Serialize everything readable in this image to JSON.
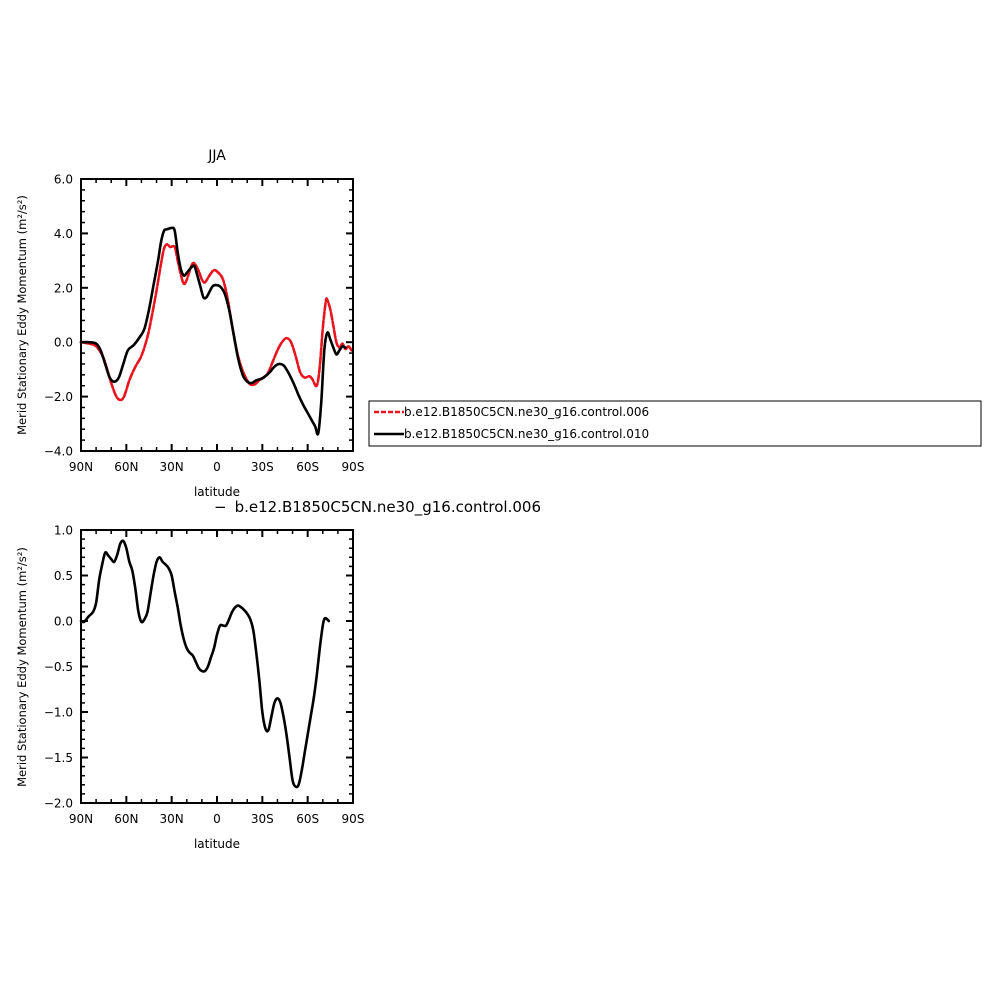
{
  "chart_data": [
    {
      "type": "line",
      "title": "JJA",
      "xlabel": "latitude",
      "ylabel": "Merid Stationary Eddy Momentum (m²/s²)",
      "xlim": [
        90,
        -90
      ],
      "ylim": [
        -4.0,
        6.0
      ],
      "xticks": [
        {
          "value": 90,
          "label": "90N"
        },
        {
          "value": 60,
          "label": "60N"
        },
        {
          "value": 30,
          "label": "30N"
        },
        {
          "value": 0,
          "label": "0"
        },
        {
          "value": -30,
          "label": "30S"
        },
        {
          "value": -60,
          "label": "60S"
        },
        {
          "value": -90,
          "label": "90S"
        }
      ],
      "yticks": [
        {
          "value": 6,
          "label": "6.0"
        },
        {
          "value": 4,
          "label": "4.0"
        },
        {
          "value": 2,
          "label": "2.0"
        },
        {
          "value": 0,
          "label": "0.0"
        },
        {
          "value": -2,
          "label": "−2.0"
        },
        {
          "value": -4,
          "label": "−4.0"
        }
      ],
      "series": [
        {
          "name": "b.e12.B1850C5CN.ne30_g16.control.006",
          "color": "#e8141e",
          "dash": true,
          "points": [
            [
              90,
              0.0
            ],
            [
              85,
              -0.05
            ],
            [
              80,
              -0.15
            ],
            [
              75,
              -0.6
            ],
            [
              70,
              -1.5
            ],
            [
              66,
              -2.05
            ],
            [
              62,
              -2.05
            ],
            [
              58,
              -1.4
            ],
            [
              54,
              -0.9
            ],
            [
              50,
              -0.5
            ],
            [
              46,
              0.2
            ],
            [
              43,
              1.0
            ],
            [
              40,
              1.9
            ],
            [
              37,
              2.9
            ],
            [
              35,
              3.45
            ],
            [
              33,
              3.6
            ],
            [
              31,
              3.5
            ],
            [
              28,
              3.5
            ],
            [
              26,
              3.0
            ],
            [
              24,
              2.5
            ],
            [
              22,
              2.15
            ],
            [
              20,
              2.3
            ],
            [
              17,
              2.8
            ],
            [
              15,
              2.9
            ],
            [
              12,
              2.6
            ],
            [
              10,
              2.3
            ],
            [
              8,
              2.2
            ],
            [
              5,
              2.45
            ],
            [
              2,
              2.65
            ],
            [
              -1,
              2.55
            ],
            [
              -4,
              2.3
            ],
            [
              -7,
              1.6
            ],
            [
              -10,
              0.6
            ],
            [
              -13,
              -0.3
            ],
            [
              -16,
              -0.9
            ],
            [
              -19,
              -1.3
            ],
            [
              -22,
              -1.55
            ],
            [
              -25,
              -1.55
            ],
            [
              -28,
              -1.4
            ],
            [
              -31,
              -1.3
            ],
            [
              -34,
              -1.1
            ],
            [
              -37,
              -0.7
            ],
            [
              -40,
              -0.3
            ],
            [
              -43,
              0.0
            ],
            [
              -46,
              0.15
            ],
            [
              -49,
              0.0
            ],
            [
              -52,
              -0.5
            ],
            [
              -55,
              -1.1
            ],
            [
              -58,
              -1.3
            ],
            [
              -61,
              -1.25
            ],
            [
              -63,
              -1.35
            ],
            [
              -66,
              -1.6
            ],
            [
              -68,
              -0.9
            ],
            [
              -70,
              0.5
            ],
            [
              -72,
              1.5
            ],
            [
              -73,
              1.55
            ],
            [
              -75,
              1.2
            ],
            [
              -77,
              0.6
            ],
            [
              -79,
              0.0
            ],
            [
              -81,
              -0.2
            ],
            [
              -83,
              -0.05
            ],
            [
              -85,
              -0.25
            ],
            [
              -87,
              -0.15
            ],
            [
              -89,
              -0.3
            ]
          ]
        },
        {
          "name": "b.e12.B1850C5CN.ne30_g16.control.010",
          "color": "#000000",
          "dash": false,
          "points": [
            [
              90,
              0.0
            ],
            [
              85,
              0.0
            ],
            [
              80,
              -0.05
            ],
            [
              77,
              -0.3
            ],
            [
              74,
              -0.8
            ],
            [
              71,
              -1.3
            ],
            [
              68,
              -1.45
            ],
            [
              65,
              -1.3
            ],
            [
              62,
              -0.8
            ],
            [
              59,
              -0.3
            ],
            [
              55,
              -0.1
            ],
            [
              51,
              0.2
            ],
            [
              48,
              0.5
            ],
            [
              45,
              1.2
            ],
            [
              42,
              2.1
            ],
            [
              39,
              3.0
            ],
            [
              37,
              3.7
            ],
            [
              35,
              4.1
            ],
            [
              33,
              4.15
            ],
            [
              30,
              4.2
            ],
            [
              28,
              4.1
            ],
            [
              26,
              3.3
            ],
            [
              24,
              2.7
            ],
            [
              22,
              2.45
            ],
            [
              20,
              2.55
            ],
            [
              17,
              2.75
            ],
            [
              15,
              2.8
            ],
            [
              13,
              2.45
            ],
            [
              11,
              2.05
            ],
            [
              9,
              1.65
            ],
            [
              7,
              1.65
            ],
            [
              5,
              1.85
            ],
            [
              3,
              2.05
            ],
            [
              1,
              2.1
            ],
            [
              -2,
              2.05
            ],
            [
              -5,
              1.8
            ],
            [
              -8,
              1.2
            ],
            [
              -11,
              0.3
            ],
            [
              -14,
              -0.6
            ],
            [
              -17,
              -1.2
            ],
            [
              -20,
              -1.45
            ],
            [
              -23,
              -1.5
            ],
            [
              -26,
              -1.4
            ],
            [
              -29,
              -1.35
            ],
            [
              -32,
              -1.25
            ],
            [
              -35,
              -1.1
            ],
            [
              -38,
              -0.9
            ],
            [
              -41,
              -0.8
            ],
            [
              -44,
              -0.85
            ],
            [
              -46,
              -1.0
            ],
            [
              -48,
              -1.2
            ],
            [
              -51,
              -1.55
            ],
            [
              -54,
              -1.95
            ],
            [
              -57,
              -2.3
            ],
            [
              -60,
              -2.6
            ],
            [
              -63,
              -2.9
            ],
            [
              -65,
              -3.1
            ],
            [
              -67,
              -3.35
            ],
            [
              -69,
              -2.2
            ],
            [
              -71,
              -0.3
            ],
            [
              -73,
              0.35
            ],
            [
              -75,
              0.1
            ],
            [
              -77,
              -0.2
            ],
            [
              -79,
              -0.45
            ],
            [
              -81,
              -0.3
            ],
            [
              -83,
              -0.15
            ],
            [
              -85,
              -0.2
            ]
          ]
        }
      ]
    },
    {
      "type": "line",
      "title": "b.e12.B1850C5CN.ne30_g16.control.006",
      "title_prefix": "−",
      "xlabel": "latitude",
      "ylabel": "Merid Stationary Eddy Momentum (m²/s²)",
      "xlim": [
        90,
        -90
      ],
      "ylim": [
        -2.0,
        1.0
      ],
      "xticks": [
        {
          "value": 90,
          "label": "90N"
        },
        {
          "value": 60,
          "label": "60N"
        },
        {
          "value": 30,
          "label": "30N"
        },
        {
          "value": 0,
          "label": "0"
        },
        {
          "value": -30,
          "label": "30S"
        },
        {
          "value": -60,
          "label": "60S"
        },
        {
          "value": -90,
          "label": "90S"
        }
      ],
      "yticks": [
        {
          "value": 1.0,
          "label": "1.0"
        },
        {
          "value": 0.5,
          "label": "0.5"
        },
        {
          "value": 0.0,
          "label": "0.0"
        },
        {
          "value": -0.5,
          "label": "−0.5"
        },
        {
          "value": -1.0,
          "label": "−1.0"
        },
        {
          "value": -1.5,
          "label": "−1.5"
        },
        {
          "value": -2.0,
          "label": "−2.0"
        }
      ],
      "series": [
        {
          "color": "#000000",
          "dash": false,
          "points": [
            [
              90,
              0.0
            ],
            [
              88,
              -0.01
            ],
            [
              85,
              0.05
            ],
            [
              82,
              0.1
            ],
            [
              80,
              0.2
            ],
            [
              78,
              0.45
            ],
            [
              76,
              0.62
            ],
            [
              74,
              0.75
            ],
            [
              72,
              0.72
            ],
            [
              70,
              0.68
            ],
            [
              68,
              0.65
            ],
            [
              66,
              0.73
            ],
            [
              64,
              0.85
            ],
            [
              62,
              0.88
            ],
            [
              60,
              0.8
            ],
            [
              58,
              0.65
            ],
            [
              56,
              0.55
            ],
            [
              54,
              0.35
            ],
            [
              52,
              0.1
            ],
            [
              50,
              -0.01
            ],
            [
              48,
              0.02
            ],
            [
              46,
              0.1
            ],
            [
              44,
              0.3
            ],
            [
              42,
              0.5
            ],
            [
              40,
              0.65
            ],
            [
              38,
              0.7
            ],
            [
              36,
              0.65
            ],
            [
              34,
              0.62
            ],
            [
              32,
              0.58
            ],
            [
              30,
              0.5
            ],
            [
              28,
              0.32
            ],
            [
              26,
              0.15
            ],
            [
              24,
              -0.05
            ],
            [
              22,
              -0.2
            ],
            [
              20,
              -0.3
            ],
            [
              18,
              -0.35
            ],
            [
              16,
              -0.38
            ],
            [
              14,
              -0.45
            ],
            [
              12,
              -0.52
            ],
            [
              10,
              -0.55
            ],
            [
              8,
              -0.55
            ],
            [
              6,
              -0.5
            ],
            [
              4,
              -0.4
            ],
            [
              2,
              -0.3
            ],
            [
              0,
              -0.15
            ],
            [
              -2,
              -0.05
            ],
            [
              -4,
              -0.05
            ],
            [
              -6,
              -0.05
            ],
            [
              -8,
              0.02
            ],
            [
              -10,
              0.1
            ],
            [
              -12,
              0.15
            ],
            [
              -14,
              0.17
            ],
            [
              -16,
              0.15
            ],
            [
              -18,
              0.12
            ],
            [
              -20,
              0.08
            ],
            [
              -22,
              0.02
            ],
            [
              -24,
              -0.1
            ],
            [
              -26,
              -0.35
            ],
            [
              -28,
              -0.65
            ],
            [
              -30,
              -1.0
            ],
            [
              -32,
              -1.18
            ],
            [
              -34,
              -1.2
            ],
            [
              -36,
              -1.05
            ],
            [
              -38,
              -0.9
            ],
            [
              -40,
              -0.85
            ],
            [
              -42,
              -0.9
            ],
            [
              -44,
              -1.05
            ],
            [
              -46,
              -1.25
            ],
            [
              -48,
              -1.5
            ],
            [
              -50,
              -1.75
            ],
            [
              -52,
              -1.82
            ],
            [
              -54,
              -1.8
            ],
            [
              -56,
              -1.65
            ],
            [
              -58,
              -1.45
            ],
            [
              -60,
              -1.25
            ],
            [
              -62,
              -1.05
            ],
            [
              -64,
              -0.85
            ],
            [
              -66,
              -0.6
            ],
            [
              -68,
              -0.3
            ],
            [
              -70,
              -0.05
            ],
            [
              -71,
              0.02
            ],
            [
              -72,
              0.03
            ],
            [
              -74,
              0.0
            ]
          ]
        }
      ]
    }
  ]
}
